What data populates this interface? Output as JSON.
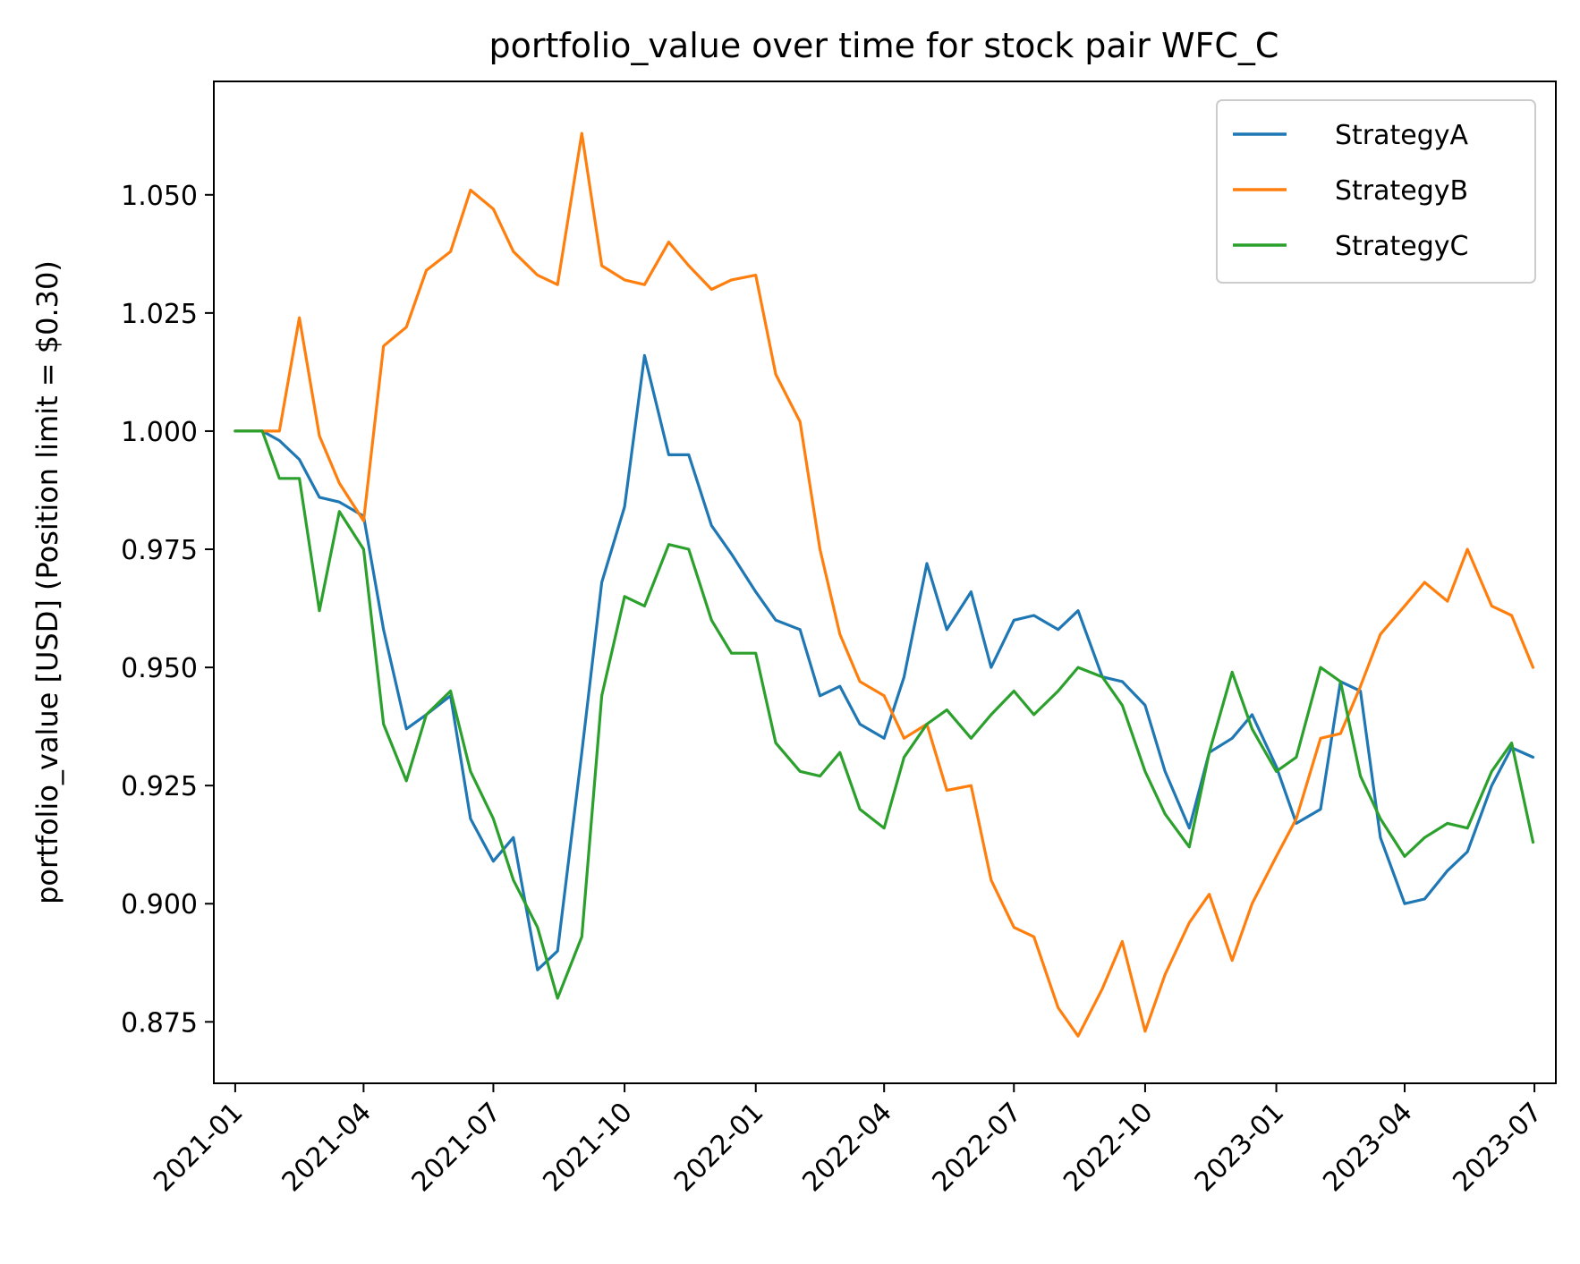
{
  "chart_data": {
    "type": "line",
    "title": "portfolio_value over time for stock pair WFC_C",
    "xlabel": "",
    "ylabel": "portfolio_value [USD] (Position limit = $0.30)",
    "x_ticks": [
      "2021-01",
      "2021-04",
      "2021-07",
      "2021-10",
      "2022-01",
      "2022-04",
      "2022-07",
      "2022-10",
      "2023-01",
      "2023-04",
      "2023-07"
    ],
    "y_ticks": [
      "0.875",
      "0.900",
      "0.925",
      "0.950",
      "0.975",
      "1.000",
      "1.025",
      "1.050"
    ],
    "xlim": [
      "2020-12-17",
      "2023-07-16"
    ],
    "ylim": [
      0.862,
      1.074
    ],
    "grid": false,
    "legend_position": "top-right",
    "x": [
      "2021-01-01",
      "2021-01-20",
      "2021-02-01",
      "2021-02-15",
      "2021-03-01",
      "2021-03-15",
      "2021-04-01",
      "2021-04-15",
      "2021-05-01",
      "2021-05-15",
      "2021-06-01",
      "2021-06-15",
      "2021-07-01",
      "2021-07-15",
      "2021-08-01",
      "2021-08-15",
      "2021-09-01",
      "2021-09-15",
      "2021-10-01",
      "2021-10-15",
      "2021-11-01",
      "2021-11-15",
      "2021-12-01",
      "2021-12-15",
      "2022-01-01",
      "2022-01-15",
      "2022-02-01",
      "2022-02-15",
      "2022-03-01",
      "2022-03-15",
      "2022-04-01",
      "2022-04-15",
      "2022-05-01",
      "2022-05-15",
      "2022-06-01",
      "2022-06-15",
      "2022-07-01",
      "2022-07-15",
      "2022-08-01",
      "2022-08-15",
      "2022-09-01",
      "2022-09-15",
      "2022-10-01",
      "2022-10-15",
      "2022-11-01",
      "2022-11-15",
      "2022-12-01",
      "2022-12-15",
      "2023-01-01",
      "2023-01-15",
      "2023-02-01",
      "2023-02-15",
      "2023-03-01",
      "2023-03-15",
      "2023-04-01",
      "2023-04-15",
      "2023-05-01",
      "2023-05-15",
      "2023-06-01",
      "2023-06-15",
      "2023-06-30"
    ],
    "series": [
      {
        "name": "StrategyA",
        "color": "#1f77b4",
        "values": [
          1.0,
          1.0,
          0.998,
          0.994,
          0.986,
          0.985,
          0.982,
          0.958,
          0.937,
          0.94,
          0.944,
          0.918,
          0.909,
          0.914,
          0.886,
          0.89,
          0.932,
          0.968,
          0.984,
          1.016,
          0.995,
          0.995,
          0.98,
          0.974,
          0.966,
          0.96,
          0.958,
          0.944,
          0.946,
          0.938,
          0.935,
          0.948,
          0.972,
          0.958,
          0.966,
          0.95,
          0.96,
          0.961,
          0.958,
          0.962,
          0.948,
          0.947,
          0.942,
          0.928,
          0.916,
          0.932,
          0.935,
          0.94,
          0.929,
          0.917,
          0.92,
          0.947,
          0.945,
          0.914,
          0.9,
          0.901,
          0.907,
          0.911,
          0.925,
          0.933,
          0.931
        ]
      },
      {
        "name": "StrategyB",
        "color": "#ff7f0e",
        "values": [
          1.0,
          1.0,
          1.0,
          1.024,
          0.999,
          0.989,
          0.981,
          1.018,
          1.022,
          1.034,
          1.038,
          1.051,
          1.047,
          1.038,
          1.033,
          1.031,
          1.063,
          1.035,
          1.032,
          1.031,
          1.04,
          1.035,
          1.03,
          1.032,
          1.033,
          1.012,
          1.002,
          0.975,
          0.957,
          0.947,
          0.944,
          0.935,
          0.938,
          0.924,
          0.925,
          0.905,
          0.895,
          0.893,
          0.878,
          0.872,
          0.882,
          0.892,
          0.873,
          0.885,
          0.896,
          0.902,
          0.888,
          0.9,
          0.91,
          0.918,
          0.935,
          0.936,
          0.946,
          0.957,
          0.963,
          0.968,
          0.964,
          0.975,
          0.963,
          0.961,
          0.95
        ]
      },
      {
        "name": "StrategyC",
        "color": "#2ca02c",
        "values": [
          1.0,
          1.0,
          0.99,
          0.99,
          0.962,
          0.983,
          0.975,
          0.938,
          0.926,
          0.94,
          0.945,
          0.928,
          0.918,
          0.905,
          0.895,
          0.88,
          0.893,
          0.944,
          0.965,
          0.963,
          0.976,
          0.975,
          0.96,
          0.953,
          0.953,
          0.934,
          0.928,
          0.927,
          0.932,
          0.92,
          0.916,
          0.931,
          0.938,
          0.941,
          0.935,
          0.94,
          0.945,
          0.94,
          0.945,
          0.95,
          0.948,
          0.942,
          0.928,
          0.919,
          0.912,
          0.932,
          0.949,
          0.937,
          0.928,
          0.931,
          0.95,
          0.947,
          0.927,
          0.918,
          0.91,
          0.914,
          0.917,
          0.916,
          0.928,
          0.934,
          0.913
        ]
      }
    ]
  }
}
